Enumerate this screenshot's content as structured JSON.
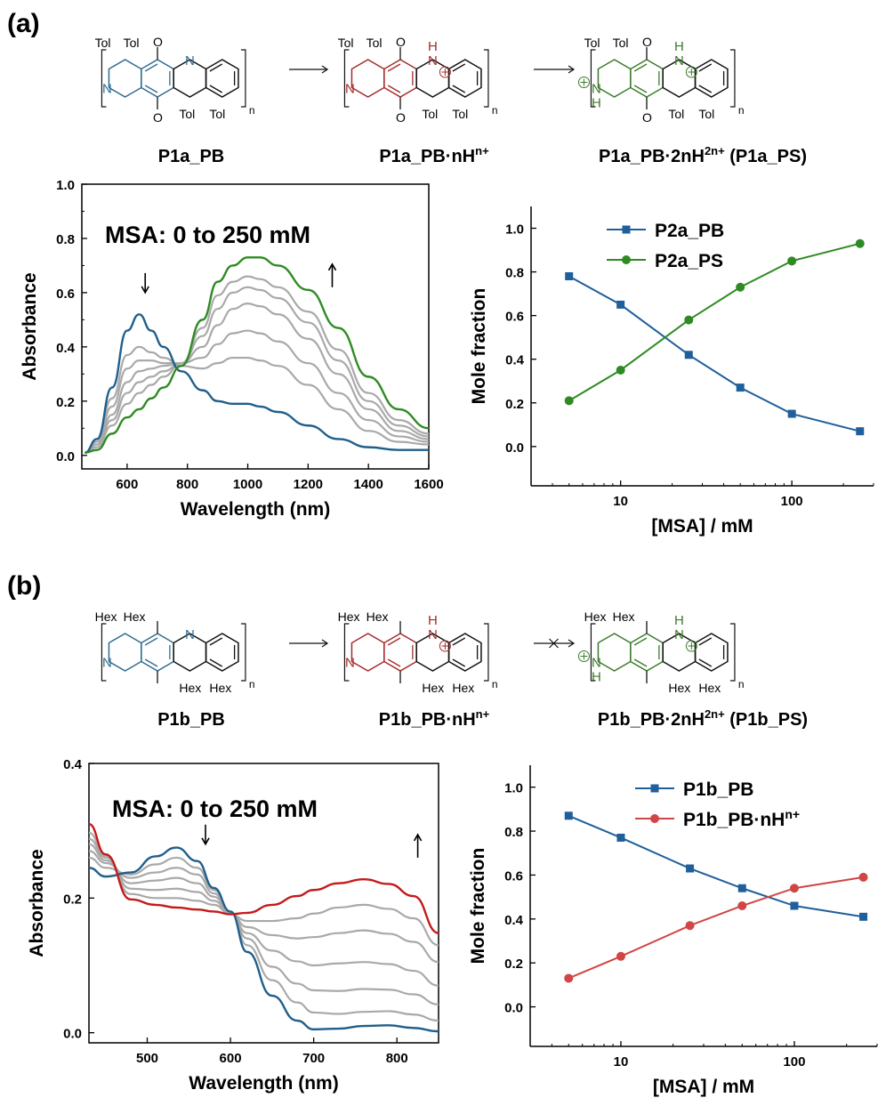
{
  "panel_labels": [
    "(a)",
    "(b)"
  ],
  "schemes": [
    {
      "substituent": "Tol",
      "has_methoxy": true,
      "third_arrow_blocked": false,
      "names": [
        "P1a_PB",
        "P1a_PB·nH",
        "P1a_PB·2nH",
        "(P1a_PS)"
      ],
      "sup": [
        "n+",
        "2n+"
      ],
      "n_label": "n",
      "colors": [
        "#2f6b8f",
        "#a52a2a",
        "#3b7a2b"
      ]
    },
    {
      "substituent": "Hex",
      "has_methoxy": false,
      "third_arrow_blocked": true,
      "names": [
        "P1b_PB",
        "P1b_PB·nH",
        "P1b_PB·2nH",
        "(P1b_PS)"
      ],
      "sup": [
        "n+",
        "2n+"
      ],
      "n_label": "n",
      "colors": [
        "#2f6b8f",
        "#a52a2a",
        "#3b7a2b"
      ]
    }
  ],
  "chart_data": [
    {
      "id": "a-spectra",
      "type": "line",
      "annotation": "MSA: 0 to 250 mM",
      "xlabel": "Wavelength (nm)",
      "ylabel": "Absorbance",
      "xlim": [
        450,
        1600
      ],
      "ylim": [
        -0.05,
        1.0
      ],
      "xticks": [
        600,
        800,
        1000,
        1200,
        1400,
        1600
      ],
      "yticks": [
        0.0,
        0.2,
        0.4,
        0.6,
        0.8,
        1.0
      ],
      "arrows": [
        {
          "x": 660,
          "y": 0.6,
          "dir": "down"
        },
        {
          "x": 1280,
          "y": 0.62,
          "dir": "up"
        }
      ],
      "series_colors": [
        "#1f5f8b",
        "#a9a9a9",
        "#a9a9a9",
        "#a9a9a9",
        "#a9a9a9",
        "#a9a9a9",
        "#2e8b22"
      ],
      "x": [
        460,
        500,
        550,
        600,
        640,
        680,
        720,
        780,
        850,
        900,
        950,
        1000,
        1040,
        1100,
        1200,
        1300,
        1400,
        1500,
        1600
      ],
      "series": [
        {
          "values": [
            0.01,
            0.06,
            0.25,
            0.46,
            0.52,
            0.46,
            0.4,
            0.31,
            0.24,
            0.2,
            0.19,
            0.19,
            0.18,
            0.16,
            0.11,
            0.06,
            0.03,
            0.02,
            0.02
          ]
        },
        {
          "values": [
            0.01,
            0.06,
            0.21,
            0.37,
            0.4,
            0.38,
            0.36,
            0.33,
            0.32,
            0.34,
            0.36,
            0.36,
            0.35,
            0.33,
            0.26,
            0.17,
            0.09,
            0.05,
            0.04
          ]
        },
        {
          "values": [
            0.01,
            0.05,
            0.18,
            0.32,
            0.35,
            0.35,
            0.34,
            0.34,
            0.36,
            0.41,
            0.45,
            0.46,
            0.45,
            0.42,
            0.34,
            0.23,
            0.13,
            0.07,
            0.05
          ]
        },
        {
          "values": [
            0.01,
            0.04,
            0.15,
            0.27,
            0.31,
            0.32,
            0.33,
            0.34,
            0.4,
            0.48,
            0.54,
            0.56,
            0.55,
            0.52,
            0.43,
            0.3,
            0.17,
            0.09,
            0.06
          ]
        },
        {
          "values": [
            0.01,
            0.04,
            0.13,
            0.23,
            0.27,
            0.29,
            0.31,
            0.34,
            0.44,
            0.54,
            0.6,
            0.62,
            0.61,
            0.58,
            0.49,
            0.35,
            0.2,
            0.11,
            0.07
          ]
        },
        {
          "values": [
            0.01,
            0.03,
            0.11,
            0.19,
            0.23,
            0.26,
            0.29,
            0.34,
            0.47,
            0.59,
            0.64,
            0.66,
            0.65,
            0.62,
            0.53,
            0.39,
            0.23,
            0.13,
            0.08
          ]
        },
        {
          "values": [
            0.01,
            0.02,
            0.08,
            0.14,
            0.17,
            0.21,
            0.25,
            0.33,
            0.5,
            0.64,
            0.7,
            0.73,
            0.73,
            0.7,
            0.61,
            0.47,
            0.29,
            0.17,
            0.1
          ]
        }
      ]
    },
    {
      "id": "a-fraction",
      "type": "line",
      "xscale": "log",
      "xlabel": "[MSA] / mM",
      "ylabel": "Mole fraction",
      "xlim": [
        3.0,
        300
      ],
      "ylim": [
        -0.18,
        1.1
      ],
      "xticks": [
        10,
        100
      ],
      "yticks": [
        0.0,
        0.2,
        0.4,
        0.6,
        0.8,
        1.0
      ],
      "legend": "top-left",
      "x": [
        5,
        10,
        25,
        50,
        100,
        250
      ],
      "series": [
        {
          "name": "P2a_PB",
          "marker": "square",
          "color": "#1f5f9b",
          "values": [
            0.78,
            0.65,
            0.42,
            0.27,
            0.15,
            0.07
          ]
        },
        {
          "name": "P2a_PS",
          "marker": "circle",
          "color": "#2e8b22",
          "values": [
            0.21,
            0.35,
            0.58,
            0.73,
            0.85,
            0.93
          ]
        }
      ]
    },
    {
      "id": "b-spectra",
      "type": "line",
      "annotation": "MSA: 0 to 250 mM",
      "xlabel": "Wavelength (nm)",
      "ylabel": "Absorbance",
      "xlim": [
        430,
        850
      ],
      "ylim": [
        -0.015,
        0.4
      ],
      "xticks": [
        500,
        600,
        700,
        800
      ],
      "yticks": [
        0.0,
        0.2,
        0.4
      ],
      "arrows": [
        {
          "x": 570,
          "y": 0.28,
          "dir": "down"
        },
        {
          "x": 825,
          "y": 0.26,
          "dir": "up"
        }
      ],
      "series_colors": [
        "#1f5f8b",
        "#a9a9a9",
        "#a9a9a9",
        "#a9a9a9",
        "#a9a9a9",
        "#a9a9a9",
        "#c41a1a"
      ],
      "x": [
        430,
        450,
        480,
        510,
        535,
        560,
        580,
        600,
        620,
        650,
        680,
        700,
        730,
        760,
        790,
        820,
        850
      ],
      "series": [
        {
          "values": [
            0.245,
            0.232,
            0.238,
            0.262,
            0.275,
            0.255,
            0.215,
            0.18,
            0.12,
            0.055,
            0.018,
            0.005,
            0.006,
            0.01,
            0.011,
            0.007,
            0.002
          ]
        },
        {
          "values": [
            0.26,
            0.245,
            0.235,
            0.25,
            0.26,
            0.245,
            0.212,
            0.18,
            0.13,
            0.078,
            0.045,
            0.03,
            0.028,
            0.031,
            0.032,
            0.027,
            0.018
          ]
        },
        {
          "values": [
            0.27,
            0.252,
            0.23,
            0.238,
            0.245,
            0.235,
            0.207,
            0.179,
            0.14,
            0.098,
            0.073,
            0.063,
            0.062,
            0.065,
            0.064,
            0.057,
            0.042
          ]
        },
        {
          "values": [
            0.28,
            0.256,
            0.222,
            0.226,
            0.23,
            0.222,
            0.202,
            0.178,
            0.148,
            0.122,
            0.106,
            0.1,
            0.103,
            0.105,
            0.102,
            0.092,
            0.07
          ]
        },
        {
          "values": [
            0.288,
            0.26,
            0.214,
            0.212,
            0.214,
            0.209,
            0.196,
            0.177,
            0.157,
            0.145,
            0.14,
            0.142,
            0.148,
            0.152,
            0.147,
            0.135,
            0.105
          ]
        },
        {
          "values": [
            0.297,
            0.263,
            0.206,
            0.2,
            0.2,
            0.196,
            0.19,
            0.176,
            0.166,
            0.166,
            0.17,
            0.177,
            0.186,
            0.19,
            0.184,
            0.17,
            0.13
          ]
        },
        {
          "values": [
            0.31,
            0.265,
            0.198,
            0.19,
            0.186,
            0.183,
            0.18,
            0.176,
            0.178,
            0.19,
            0.203,
            0.212,
            0.222,
            0.228,
            0.221,
            0.203,
            0.148
          ]
        }
      ]
    },
    {
      "id": "b-fraction",
      "type": "line",
      "xscale": "log",
      "xlabel": "[MSA] / mM",
      "ylabel": "Mole fraction",
      "xlim": [
        3.0,
        300
      ],
      "ylim": [
        -0.18,
        1.1
      ],
      "xticks": [
        10,
        100
      ],
      "yticks": [
        0.0,
        0.2,
        0.4,
        0.6,
        0.8,
        1.0
      ],
      "legend": "top-right",
      "x": [
        5,
        10,
        25,
        50,
        100,
        250
      ],
      "series": [
        {
          "name": "P1b_PB",
          "marker": "square",
          "color": "#1f5f9b",
          "values": [
            0.87,
            0.77,
            0.63,
            0.54,
            0.46,
            0.41
          ]
        },
        {
          "name": "P1b_PB·nH",
          "sup": "n+",
          "marker": "circle",
          "color": "#d14545",
          "values": [
            0.13,
            0.23,
            0.37,
            0.46,
            0.54,
            0.59
          ]
        }
      ]
    }
  ]
}
